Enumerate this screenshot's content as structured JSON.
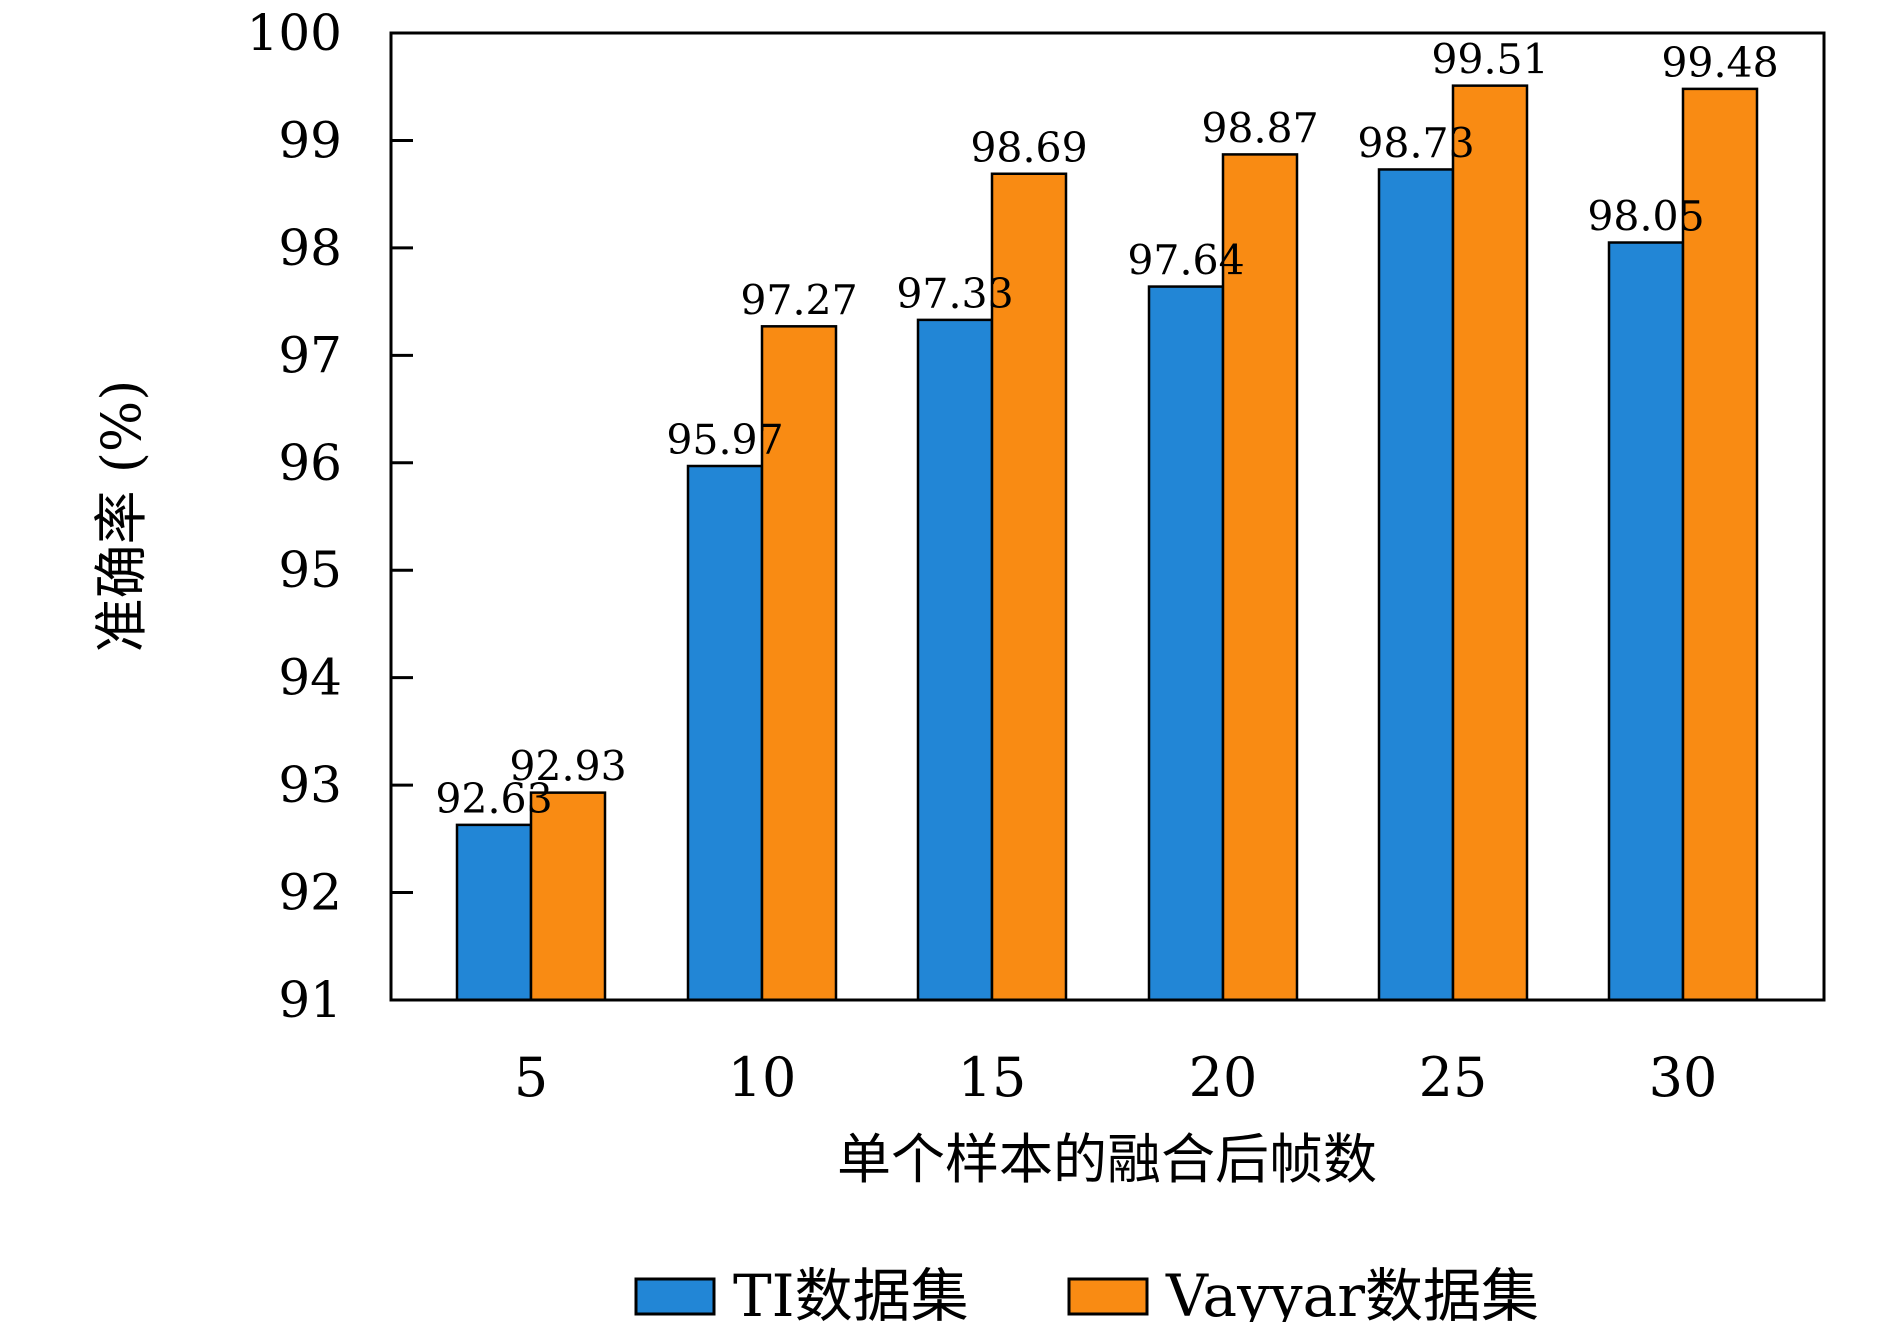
{
  "chart_data": {
    "type": "bar",
    "categories": [
      "5",
      "10",
      "15",
      "20",
      "25",
      "30"
    ],
    "series": [
      {
        "name": "TI数据集",
        "color": "#2286d6",
        "values": [
          92.63,
          95.97,
          97.33,
          97.64,
          98.73,
          98.05
        ]
      },
      {
        "name": "Vayyar数据集",
        "color": "#f98b13",
        "values": [
          92.93,
          97.27,
          98.69,
          98.87,
          99.51,
          99.48
        ]
      }
    ],
    "xlabel": "单个样本的融合后帧数",
    "ylabel": "准确率 (%)",
    "ylim": [
      91,
      100
    ],
    "yticks": [
      "91",
      "92",
      "93",
      "94",
      "95",
      "96",
      "97",
      "98",
      "99",
      "100"
    ],
    "grid": false,
    "legend_position": "bottom-center"
  }
}
